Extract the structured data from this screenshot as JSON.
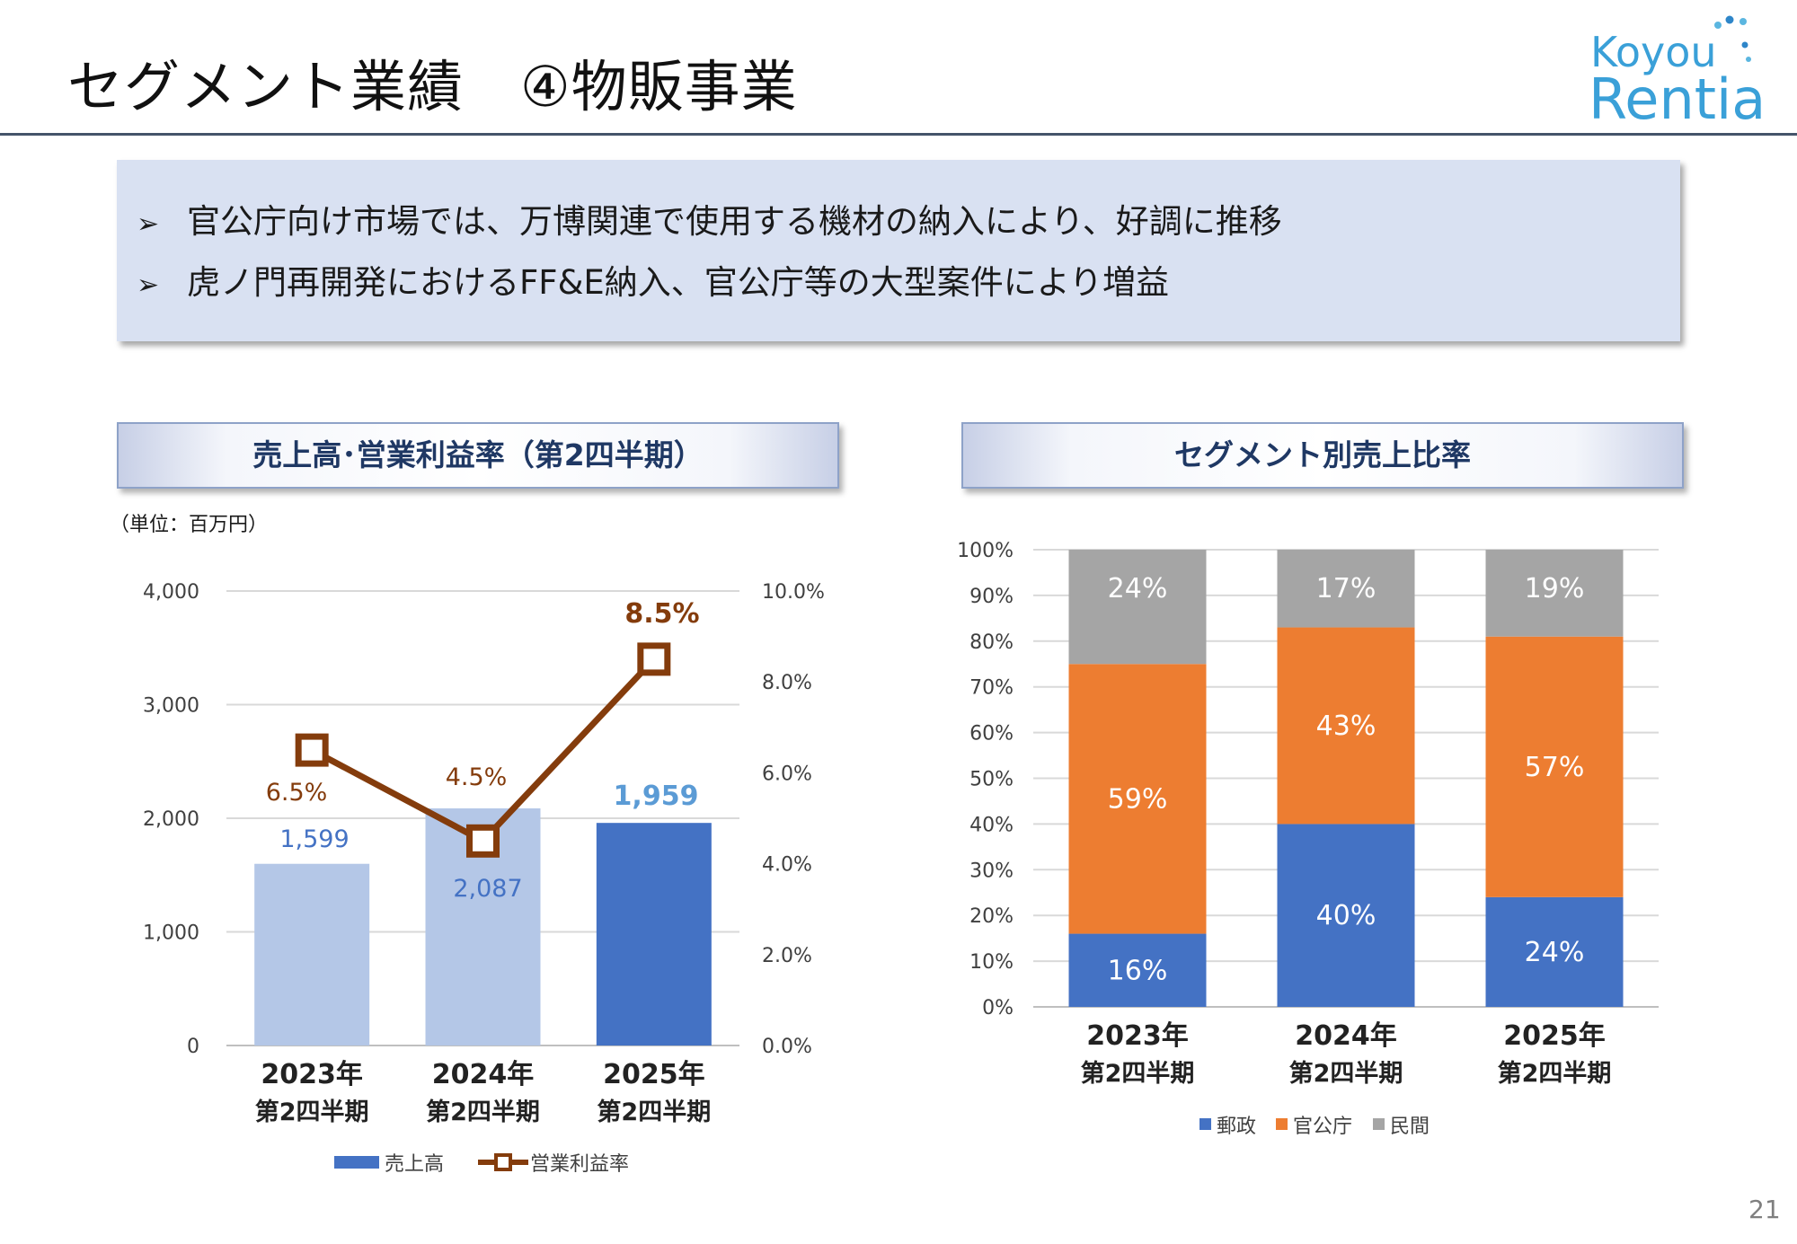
{
  "title": "セグメント業績　④物販事業",
  "logo": {
    "line1": "Koyou",
    "line2": "Rentia"
  },
  "summary": {
    "bullet_symbol": "➢",
    "bullets": [
      "官公庁向け市場では、万博関連で使用する機材の納入により、好調に推移",
      "虎ノ門再開発におけるFF&E納入、官公庁等の大型案件により増益"
    ]
  },
  "left_panel": {
    "title": "売上高･営業利益率（第2四半期）",
    "unit": "（単位：百万円）"
  },
  "right_panel": {
    "title": "セグメント別売上比率"
  },
  "page_number": "21",
  "colors": {
    "bar_light": "#b4c7e7",
    "bar_dark": "#4472c4",
    "line": "#843c0c",
    "orange": "#ed7d31",
    "gray": "#a5a5a5",
    "label_blue": "#4472c4",
    "label_blue_light": "#5b9bd5"
  },
  "chart_data": [
    {
      "type": "bar",
      "categories": [
        [
          "2023年",
          "第2四半期"
        ],
        [
          "2024年",
          "第2四半期"
        ],
        [
          "2025年",
          "第2四半期"
        ]
      ],
      "series": [
        {
          "name": "売上高",
          "kind": "bar",
          "axis": "left",
          "values": [
            1599,
            2087,
            1959
          ],
          "labels": [
            "1,599",
            "2,087",
            "1,959"
          ]
        },
        {
          "name": "営業利益率",
          "kind": "line",
          "axis": "right",
          "values": [
            6.5,
            4.5,
            8.5
          ],
          "labels": [
            "6.5%",
            "4.5%",
            "8.5%"
          ]
        }
      ],
      "y_left": {
        "min": 0,
        "max": 4000,
        "ticks": [
          "0",
          "1,000",
          "2,000",
          "3,000",
          "4,000"
        ]
      },
      "y_right": {
        "min": 0,
        "max": 10,
        "ticks": [
          "0.0%",
          "2.0%",
          "4.0%",
          "6.0%",
          "8.0%",
          "10.0%"
        ]
      },
      "grid": true,
      "legend": "bottom"
    },
    {
      "type": "bar",
      "stacked": true,
      "categories": [
        [
          "2023年",
          "第2四半期"
        ],
        [
          "2024年",
          "第2四半期"
        ],
        [
          "2025年",
          "第2四半期"
        ]
      ],
      "series": [
        {
          "name": "郵政",
          "values": [
            16,
            40,
            24
          ]
        },
        {
          "name": "官公庁",
          "values": [
            59,
            43,
            57
          ]
        },
        {
          "name": "民間",
          "values": [
            24,
            17,
            19
          ]
        }
      ],
      "ylim": [
        0,
        100
      ],
      "y_ticks": [
        "0%",
        "10%",
        "20%",
        "30%",
        "40%",
        "50%",
        "60%",
        "70%",
        "80%",
        "90%",
        "100%"
      ],
      "grid": true,
      "legend": "bottom"
    }
  ]
}
